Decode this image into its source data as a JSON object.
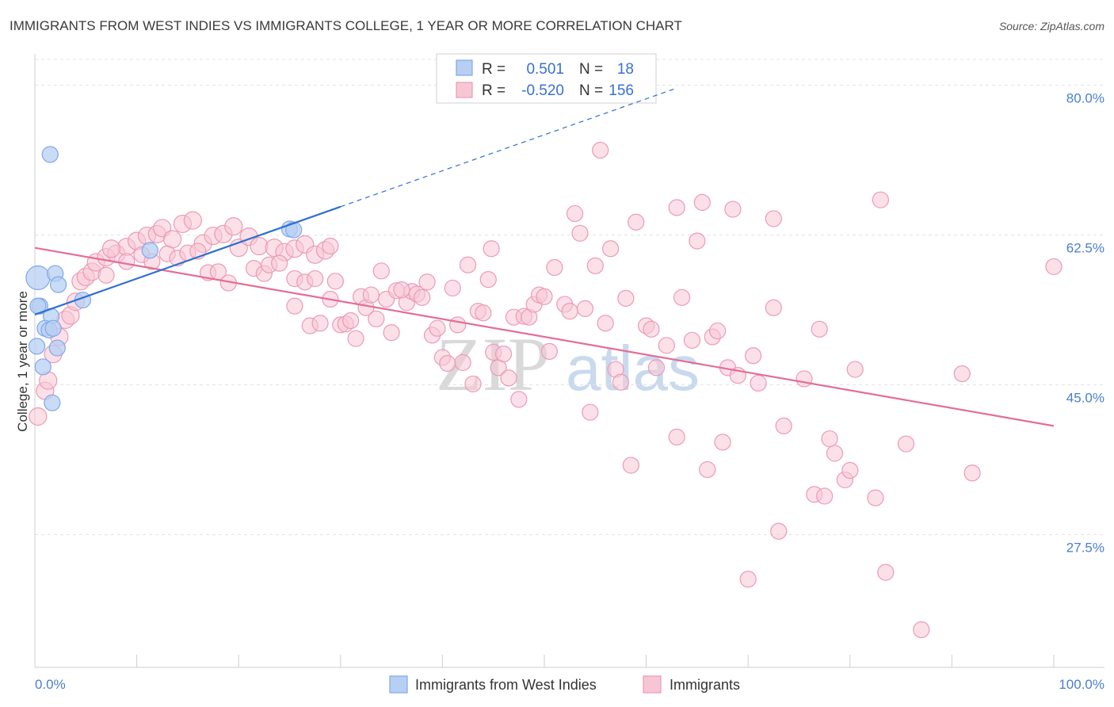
{
  "chart_data": {
    "type": "scatter",
    "title": "IMMIGRANTS FROM WEST INDIES VS IMMIGRANTS COLLEGE, 1 YEAR OR MORE CORRELATION CHART",
    "source": "Source: ZipAtlas.com",
    "xlabel": "",
    "ylabel": "College, 1 year or more",
    "xlim": [
      0,
      100
    ],
    "ylim": [
      12,
      83
    ],
    "x_tick_labels": [
      "0.0%",
      "100.0%"
    ],
    "y_ticks": [
      27.5,
      45.0,
      62.5,
      80.0
    ],
    "y_tick_labels": [
      "27.5%",
      "45.0%",
      "62.5%",
      "80.0%"
    ],
    "grid": true,
    "legend_placement": "top-center",
    "watermark": {
      "zip": "ZIP",
      "atlas": "atlas"
    },
    "legend": [
      {
        "r_label": "R =",
        "r_value": "0.501",
        "n_label": "N =",
        "n_value": "18"
      },
      {
        "r_label": "R =",
        "r_value": "-0.520",
        "n_label": "N =",
        "n_value": "156"
      }
    ],
    "series": [
      {
        "name": "Immigrants from West Indies",
        "color": "#7fa8e8",
        "fill": "#b7cff3",
        "trend_color": "#2e6fd1",
        "trend": {
          "x0": 0,
          "y0": 53.2,
          "x1": 30,
          "y1": 65.8,
          "dash_to_x": 63
        },
        "points": [
          [
            0.3,
            57.5,
            14
          ],
          [
            0.5,
            54.2,
            9
          ],
          [
            0.3,
            54.2,
            9
          ],
          [
            0.2,
            49.5,
            9
          ],
          [
            1.5,
            71.9,
            9
          ],
          [
            2.0,
            58.0,
            9
          ],
          [
            2.3,
            56.7,
            9
          ],
          [
            4.7,
            54.9,
            9
          ],
          [
            1.6,
            53.0,
            9
          ],
          [
            1.0,
            51.6,
            9
          ],
          [
            1.4,
            51.4,
            9
          ],
          [
            1.8,
            51.6,
            9
          ],
          [
            2.2,
            49.3,
            9
          ],
          [
            0.8,
            47.1,
            9
          ],
          [
            1.7,
            42.9,
            9
          ],
          [
            11.3,
            60.7,
            9
          ],
          [
            25.0,
            63.2,
            9
          ],
          [
            25.4,
            63.1,
            9
          ]
        ]
      },
      {
        "name": "Immigrants",
        "color": "#ec9ab4",
        "fill": "#f7c6d5",
        "trend_color": "#e46d96",
        "trend": {
          "x0": 0,
          "y0": 61.0,
          "x1": 100,
          "y1": 40.2
        },
        "points": [
          [
            0.3,
            41.3,
            10
          ],
          [
            1.0,
            44.3,
            10
          ],
          [
            1.3,
            45.5,
            10
          ],
          [
            1.8,
            48.6,
            10
          ],
          [
            2.4,
            50.6,
            10
          ],
          [
            3.0,
            52.6,
            10
          ],
          [
            3.5,
            53.1,
            10
          ],
          [
            4.0,
            54.7,
            10
          ],
          [
            4.5,
            57.1,
            10
          ],
          [
            5.0,
            57.6,
            10
          ],
          [
            5.6,
            58.2,
            10
          ],
          [
            6.0,
            59.3,
            10
          ],
          [
            7.0,
            59.9,
            10
          ],
          [
            8.0,
            60.3,
            10
          ],
          [
            9.0,
            61.1,
            10
          ],
          [
            7.5,
            60.9,
            10
          ],
          [
            10.0,
            61.8,
            10
          ],
          [
            11.0,
            62.4,
            10
          ],
          [
            12.0,
            62.6,
            10
          ],
          [
            12.5,
            63.3,
            10
          ],
          [
            13.5,
            62.0,
            10
          ],
          [
            14.5,
            63.8,
            10
          ],
          [
            15.5,
            64.2,
            10
          ],
          [
            16.5,
            61.5,
            10
          ],
          [
            17.5,
            62.4,
            10
          ],
          [
            18.5,
            62.6,
            10
          ],
          [
            19.5,
            63.5,
            10
          ],
          [
            20.0,
            61.0,
            10
          ],
          [
            21.0,
            62.3,
            10
          ],
          [
            22.0,
            61.2,
            10
          ],
          [
            23.5,
            61.0,
            10
          ],
          [
            24.5,
            60.5,
            10
          ],
          [
            25.5,
            60.9,
            10
          ],
          [
            26.5,
            61.4,
            10
          ],
          [
            27.5,
            60.2,
            10
          ],
          [
            28.5,
            60.7,
            10
          ],
          [
            7.0,
            57.8,
            9
          ],
          [
            9.0,
            59.4,
            9
          ],
          [
            10.5,
            60.2,
            9
          ],
          [
            11.5,
            59.4,
            9
          ],
          [
            13.0,
            60.3,
            9
          ],
          [
            14.0,
            59.8,
            9
          ],
          [
            15.0,
            60.4,
            9
          ],
          [
            16.0,
            60.6,
            9
          ],
          [
            17.0,
            58.1,
            9
          ],
          [
            18.0,
            58.2,
            9
          ],
          [
            19.0,
            56.9,
            9
          ],
          [
            21.5,
            58.6,
            9
          ],
          [
            22.5,
            58.0,
            9
          ],
          [
            23.0,
            59.0,
            9
          ],
          [
            24.0,
            59.2,
            9
          ],
          [
            25.5,
            57.4,
            9
          ],
          [
            26.5,
            57.0,
            9
          ],
          [
            27.5,
            57.4,
            9
          ],
          [
            29.0,
            61.2,
            9
          ],
          [
            29.5,
            57.1,
            9
          ],
          [
            25.5,
            54.2,
            9
          ],
          [
            27.0,
            51.9,
            9
          ],
          [
            28.0,
            52.2,
            9
          ],
          [
            29.0,
            55.0,
            9
          ],
          [
            30.0,
            52.0,
            9
          ],
          [
            30.5,
            52.1,
            9
          ],
          [
            31.0,
            52.5,
            9
          ],
          [
            31.5,
            50.4,
            9
          ],
          [
            32.0,
            55.3,
            9
          ],
          [
            32.5,
            54.0,
            9
          ],
          [
            33.0,
            55.5,
            9
          ],
          [
            33.5,
            52.7,
            9
          ],
          [
            34.5,
            55.0,
            9
          ],
          [
            35.0,
            51.1,
            9
          ],
          [
            35.5,
            56.0,
            9
          ],
          [
            36.5,
            54.6,
            9
          ],
          [
            37.0,
            55.9,
            9
          ],
          [
            37.5,
            55.6,
            9
          ],
          [
            38.0,
            55.2,
            9
          ],
          [
            38.5,
            57.0,
            9
          ],
          [
            39.0,
            50.8,
            9
          ],
          [
            39.5,
            51.6,
            9
          ],
          [
            40.0,
            48.2,
            9
          ],
          [
            40.5,
            47.5,
            9
          ],
          [
            41.0,
            56.3,
            9
          ],
          [
            41.5,
            52.0,
            9
          ],
          [
            42.0,
            47.6,
            9
          ],
          [
            42.5,
            59.0,
            9
          ],
          [
            43.0,
            45.1,
            9
          ],
          [
            43.5,
            53.6,
            9
          ],
          [
            44.0,
            53.4,
            9
          ],
          [
            44.5,
            57.3,
            9
          ],
          [
            45.0,
            48.8,
            9
          ],
          [
            45.5,
            47.0,
            9
          ],
          [
            46.0,
            48.6,
            9
          ],
          [
            46.5,
            45.8,
            9
          ],
          [
            47.0,
            52.9,
            9
          ],
          [
            47.5,
            43.3,
            9
          ],
          [
            48.0,
            53.0,
            9
          ],
          [
            48.5,
            52.9,
            9
          ],
          [
            49.0,
            54.4,
            9
          ],
          [
            49.5,
            55.5,
            9
          ],
          [
            50.0,
            55.3,
            9
          ],
          [
            50.5,
            48.9,
            9
          ],
          [
            51.0,
            58.7,
            9
          ],
          [
            52.0,
            54.4,
            9
          ],
          [
            52.5,
            53.6,
            9
          ],
          [
            53.0,
            65.0,
            9
          ],
          [
            53.5,
            62.7,
            9
          ],
          [
            54.0,
            53.9,
            9
          ],
          [
            54.5,
            41.8,
            9
          ],
          [
            55.0,
            58.9,
            9
          ],
          [
            56.0,
            52.2,
            9
          ],
          [
            56.5,
            60.9,
            9
          ],
          [
            57.0,
            46.8,
            9
          ],
          [
            57.5,
            45.3,
            9
          ],
          [
            55.5,
            72.4,
            9
          ],
          [
            58.0,
            55.1,
            9
          ],
          [
            58.5,
            35.6,
            9
          ],
          [
            59.0,
            64.0,
            9
          ],
          [
            60.0,
            51.9,
            9
          ],
          [
            60.5,
            51.5,
            9
          ],
          [
            61.0,
            47.0,
            9
          ],
          [
            62.0,
            49.6,
            9
          ],
          [
            63.0,
            65.7,
            9
          ],
          [
            63.0,
            38.9,
            9
          ],
          [
            63.5,
            55.2,
            9
          ],
          [
            64.5,
            50.2,
            9
          ],
          [
            65.0,
            61.8,
            9
          ],
          [
            65.5,
            66.3,
            9
          ],
          [
            66.0,
            35.1,
            9
          ],
          [
            66.5,
            50.6,
            9
          ],
          [
            67.0,
            51.3,
            9
          ],
          [
            67.5,
            38.3,
            9
          ],
          [
            68.0,
            47.0,
            9
          ],
          [
            68.5,
            65.5,
            9
          ],
          [
            69.0,
            46.1,
            9
          ],
          [
            70.5,
            48.4,
            9
          ],
          [
            70.0,
            22.3,
            9
          ],
          [
            71.0,
            45.2,
            9
          ],
          [
            72.5,
            54.0,
            9
          ],
          [
            72.5,
            64.4,
            9
          ],
          [
            73.0,
            27.9,
            9
          ],
          [
            73.5,
            40.2,
            9
          ],
          [
            75.5,
            45.7,
            9
          ],
          [
            76.5,
            32.2,
            9
          ],
          [
            77.0,
            51.5,
            9
          ],
          [
            77.5,
            32.0,
            9
          ],
          [
            78.0,
            38.7,
            9
          ],
          [
            78.5,
            37.0,
            9
          ],
          [
            79.5,
            33.9,
            9
          ],
          [
            80.0,
            35.0,
            9
          ],
          [
            80.5,
            46.8,
            9
          ],
          [
            82.5,
            31.8,
            9
          ],
          [
            83.0,
            66.6,
            9
          ],
          [
            83.5,
            23.1,
            9
          ],
          [
            85.5,
            38.1,
            9
          ],
          [
            87.0,
            16.4,
            9
          ],
          [
            91.0,
            46.3,
            9
          ],
          [
            92.0,
            34.7,
            9
          ],
          [
            100.0,
            58.8,
            9
          ],
          [
            44.8,
            60.9,
            9
          ],
          [
            34.0,
            58.3,
            9
          ],
          [
            36.0,
            56.1,
            9
          ]
        ]
      }
    ]
  }
}
